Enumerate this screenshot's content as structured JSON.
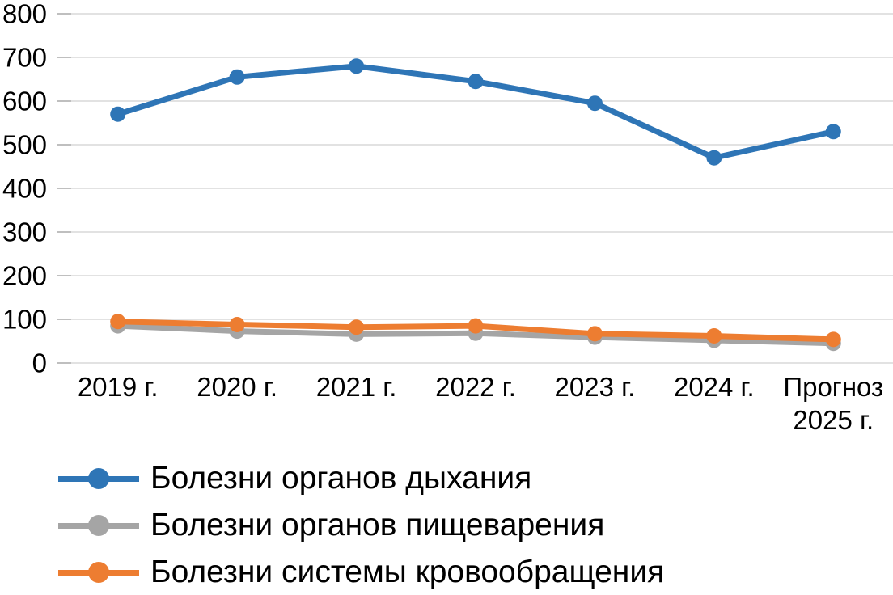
{
  "chart_data": {
    "type": "line",
    "categories": [
      "2019 г.",
      "2020 г.",
      "2021 г.",
      "2022 г.",
      "2023 г.",
      "2024 г.",
      "Прогноз\n2025 г."
    ],
    "series": [
      {
        "name": "Болезни органов дыхания",
        "color": "#2E75B6",
        "values": [
          570,
          655,
          680,
          645,
          595,
          470,
          530
        ]
      },
      {
        "name": "Болезни органов пищеварения",
        "color": "#A5A5A5",
        "values": [
          85,
          73,
          66,
          68,
          59,
          52,
          45
        ]
      },
      {
        "name": "Болезни системы кровообращения",
        "color": "#ED7D31",
        "values": [
          95,
          88,
          82,
          85,
          67,
          62,
          54
        ]
      }
    ],
    "ylim": [
      0,
      800
    ],
    "y_ticks": [
      0,
      100,
      200,
      300,
      400,
      500,
      600,
      700,
      800
    ],
    "grid": true,
    "legend_position": "bottom",
    "title": "",
    "xlabel": "",
    "ylabel": ""
  },
  "colors": {
    "gridline": "#D9D9D9",
    "tick": "#BFBFBF",
    "text": "#000000",
    "background": "#FFFFFF"
  }
}
